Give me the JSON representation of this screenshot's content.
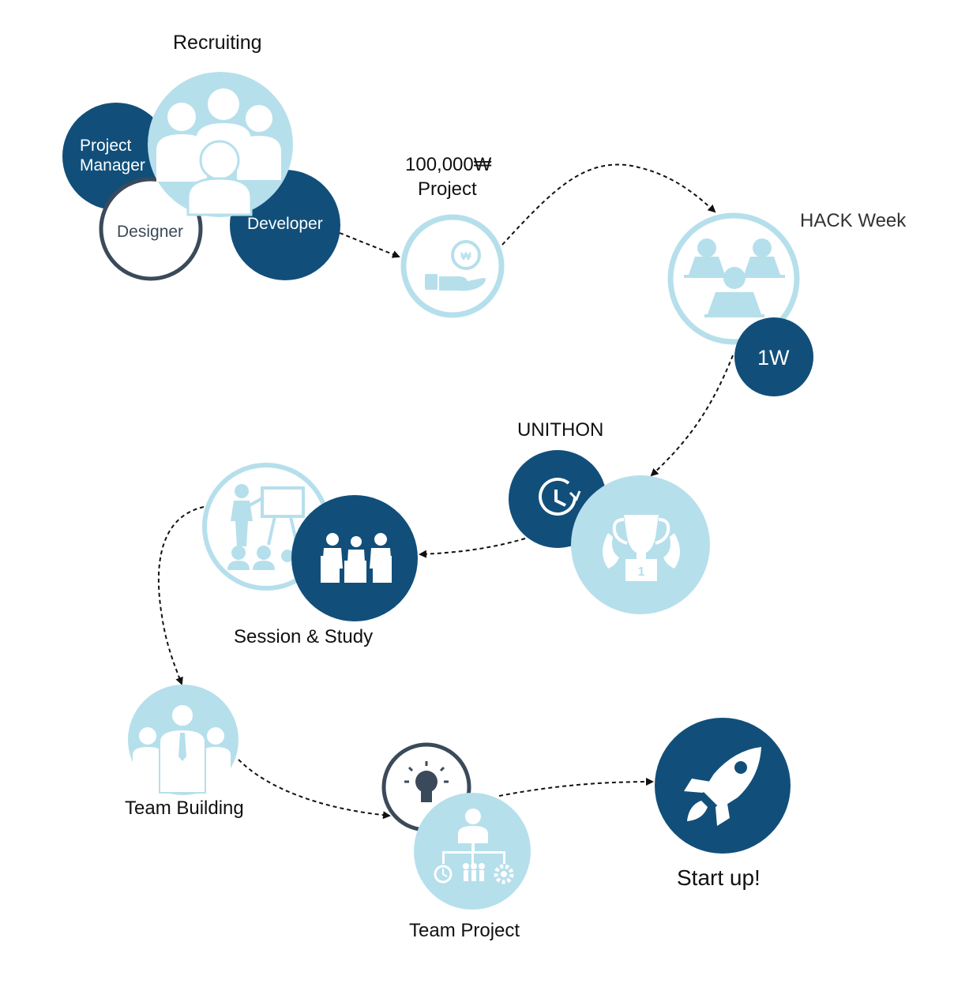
{
  "colors": {
    "dark_blue": "#114f7a",
    "light_blue": "#b6dfec",
    "ring_light": "#b6dfec",
    "ring_dark": "#3b4a5a",
    "arrow": "#111111"
  },
  "recruiting": {
    "title": "Recruiting",
    "roles": [
      "Project Manager",
      "Designer",
      "Developer"
    ],
    "icon": "people-group-icon"
  },
  "project_fund": {
    "amount": "100,000₩",
    "label": "Project",
    "icon": "hand-coin-icon"
  },
  "hack_week": {
    "title": "HACK Week",
    "badge": "1W",
    "icon": "team-laptops-icon"
  },
  "unithon": {
    "title": "UNITHON",
    "icons": [
      "clock-icon",
      "trophy-icon"
    ]
  },
  "session_study": {
    "title": "Session & Study",
    "icons": [
      "presentation-icon",
      "meeting-icon"
    ]
  },
  "team_building": {
    "title": "Team Building",
    "icon": "business-team-icon"
  },
  "team_project": {
    "title": "Team Project",
    "icons": [
      "lightbulb-icon",
      "org-chart-icon"
    ]
  },
  "start_up": {
    "title": "Start up!",
    "icon": "rocket-icon"
  }
}
